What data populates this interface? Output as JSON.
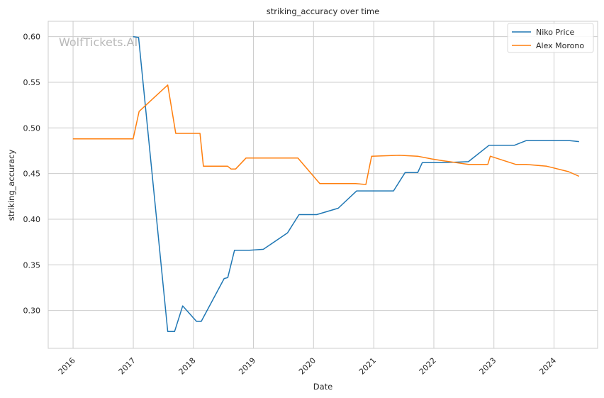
{
  "chart_data": {
    "type": "line",
    "title": "striking_accuracy over time",
    "xlabel": "Date",
    "ylabel": "striking_accuracy",
    "watermark": "WolfTickets.AI",
    "grid": true,
    "legend_position": "top-right",
    "xlim": [
      "2015-08-03",
      "2024-09-22"
    ],
    "ylim": [
      0.2585,
      0.6168
    ],
    "x_ticks": [
      "2016",
      "2017",
      "2018",
      "2019",
      "2020",
      "2021",
      "2022",
      "2023",
      "2024"
    ],
    "y_ticks": [
      "0.30",
      "0.35",
      "0.40",
      "0.45",
      "0.50",
      "0.55",
      "0.60"
    ],
    "series": [
      {
        "name": "Niko Price",
        "color": "#1f77b4",
        "points": [
          [
            "2016-12-31",
            0.6
          ],
          [
            "2017-02-02",
            0.599
          ],
          [
            "2017-07-29",
            0.277
          ],
          [
            "2017-09-09",
            0.277
          ],
          [
            "2017-10-28",
            0.305
          ],
          [
            "2018-01-20",
            0.288
          ],
          [
            "2018-02-18",
            0.288
          ],
          [
            "2018-07-07",
            0.335
          ],
          [
            "2018-07-29",
            0.336
          ],
          [
            "2018-09-08",
            0.366
          ],
          [
            "2018-12-08",
            0.366
          ],
          [
            "2019-03-02",
            0.367
          ],
          [
            "2019-07-27",
            0.385
          ],
          [
            "2019-10-05",
            0.405
          ],
          [
            "2020-01-20",
            0.405
          ],
          [
            "2020-05-30",
            0.412
          ],
          [
            "2020-09-19",
            0.431
          ],
          [
            "2021-01-02",
            0.431
          ],
          [
            "2021-05-01",
            0.431
          ],
          [
            "2021-07-10",
            0.451
          ],
          [
            "2021-09-25",
            0.451
          ],
          [
            "2021-10-23",
            0.462
          ],
          [
            "2022-02-26",
            0.462
          ],
          [
            "2022-07-30",
            0.463
          ],
          [
            "2022-12-03",
            0.481
          ],
          [
            "2023-05-06",
            0.481
          ],
          [
            "2023-07-15",
            0.486
          ],
          [
            "2024-04-06",
            0.486
          ],
          [
            "2024-06-01",
            0.485
          ]
        ]
      },
      {
        "name": "Alex Morono",
        "color": "#ff7f0e",
        "points": [
          [
            "2015-12-31",
            0.488
          ],
          [
            "2016-12-31",
            0.488
          ],
          [
            "2017-02-05",
            0.518
          ],
          [
            "2017-07-29",
            0.547
          ],
          [
            "2017-09-16",
            0.494
          ],
          [
            "2018-01-06",
            0.494
          ],
          [
            "2018-02-10",
            0.494
          ],
          [
            "2018-03-03",
            0.458
          ],
          [
            "2018-07-28",
            0.458
          ],
          [
            "2018-08-18",
            0.455
          ],
          [
            "2018-09-15",
            0.455
          ],
          [
            "2018-11-17",
            0.467
          ],
          [
            "2019-06-29",
            0.467
          ],
          [
            "2019-09-28",
            0.467
          ],
          [
            "2020-02-08",
            0.439
          ],
          [
            "2020-09-12",
            0.439
          ],
          [
            "2020-11-14",
            0.438
          ],
          [
            "2020-12-19",
            0.469
          ],
          [
            "2021-06-05",
            0.47
          ],
          [
            "2021-09-25",
            0.469
          ],
          [
            "2021-12-18",
            0.466
          ],
          [
            "2022-02-26",
            0.464
          ],
          [
            "2022-07-30",
            0.46
          ],
          [
            "2022-11-25",
            0.46
          ],
          [
            "2022-12-10",
            0.469
          ],
          [
            "2023-05-13",
            0.46
          ],
          [
            "2023-07-15",
            0.46
          ],
          [
            "2023-11-18",
            0.458
          ],
          [
            "2024-03-30",
            0.452
          ],
          [
            "2024-06-01",
            0.447
          ]
        ]
      }
    ]
  }
}
